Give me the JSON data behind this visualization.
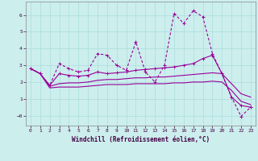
{
  "xlabel": "Windchill (Refroidissement éolien,°C)",
  "bg_color": "#cceeed",
  "grid_color": "#aadddd",
  "line_color": "#990099",
  "xlim": [
    -0.5,
    23.5
  ],
  "ylim": [
    -0.6,
    6.8
  ],
  "xticks": [
    0,
    1,
    2,
    3,
    4,
    5,
    6,
    7,
    8,
    9,
    10,
    11,
    12,
    13,
    14,
    15,
    16,
    17,
    18,
    19,
    20,
    21,
    22,
    23
  ],
  "yticks": [
    0,
    1,
    2,
    3,
    4,
    5,
    6
  ],
  "line1_x": [
    0,
    1,
    2,
    3,
    4,
    5,
    6,
    7,
    8,
    9,
    10,
    11,
    12,
    13,
    14,
    15,
    16,
    17,
    18,
    19,
    20,
    21,
    22,
    23
  ],
  "line1_y": [
    2.8,
    2.5,
    1.8,
    3.1,
    2.8,
    2.6,
    2.7,
    3.7,
    3.6,
    3.0,
    2.7,
    4.4,
    2.6,
    2.0,
    3.0,
    6.1,
    5.5,
    6.25,
    5.9,
    3.7,
    2.5,
    1.1,
    -0.05,
    0.5
  ],
  "line2_x": [
    0,
    1,
    2,
    3,
    4,
    5,
    6,
    7,
    8,
    9,
    10,
    11,
    12,
    13,
    14,
    15,
    16,
    17,
    18,
    19,
    20,
    21,
    22,
    23
  ],
  "line2_y": [
    2.8,
    2.5,
    1.8,
    2.5,
    2.4,
    2.35,
    2.4,
    2.6,
    2.5,
    2.55,
    2.6,
    2.7,
    2.75,
    2.8,
    2.85,
    2.9,
    3.0,
    3.1,
    3.4,
    3.6,
    2.5,
    1.1,
    0.6,
    0.5
  ],
  "line3_x": [
    0,
    1,
    2,
    3,
    4,
    5,
    6,
    7,
    8,
    9,
    10,
    11,
    12,
    13,
    14,
    15,
    16,
    17,
    18,
    19,
    20,
    21,
    22,
    23
  ],
  "line3_y": [
    2.8,
    2.5,
    1.75,
    1.9,
    1.95,
    1.95,
    2.0,
    2.1,
    2.15,
    2.15,
    2.2,
    2.25,
    2.25,
    2.3,
    2.3,
    2.35,
    2.4,
    2.45,
    2.5,
    2.55,
    2.5,
    1.9,
    1.3,
    1.1
  ],
  "line4_x": [
    0,
    1,
    2,
    3,
    4,
    5,
    6,
    7,
    8,
    9,
    10,
    11,
    12,
    13,
    14,
    15,
    16,
    17,
    18,
    19,
    20,
    21,
    22,
    23
  ],
  "line4_y": [
    2.8,
    2.5,
    1.65,
    1.7,
    1.7,
    1.7,
    1.75,
    1.8,
    1.85,
    1.85,
    1.85,
    1.9,
    1.9,
    1.9,
    1.9,
    1.95,
    1.95,
    2.0,
    2.0,
    2.05,
    2.0,
    1.5,
    0.85,
    0.65
  ]
}
